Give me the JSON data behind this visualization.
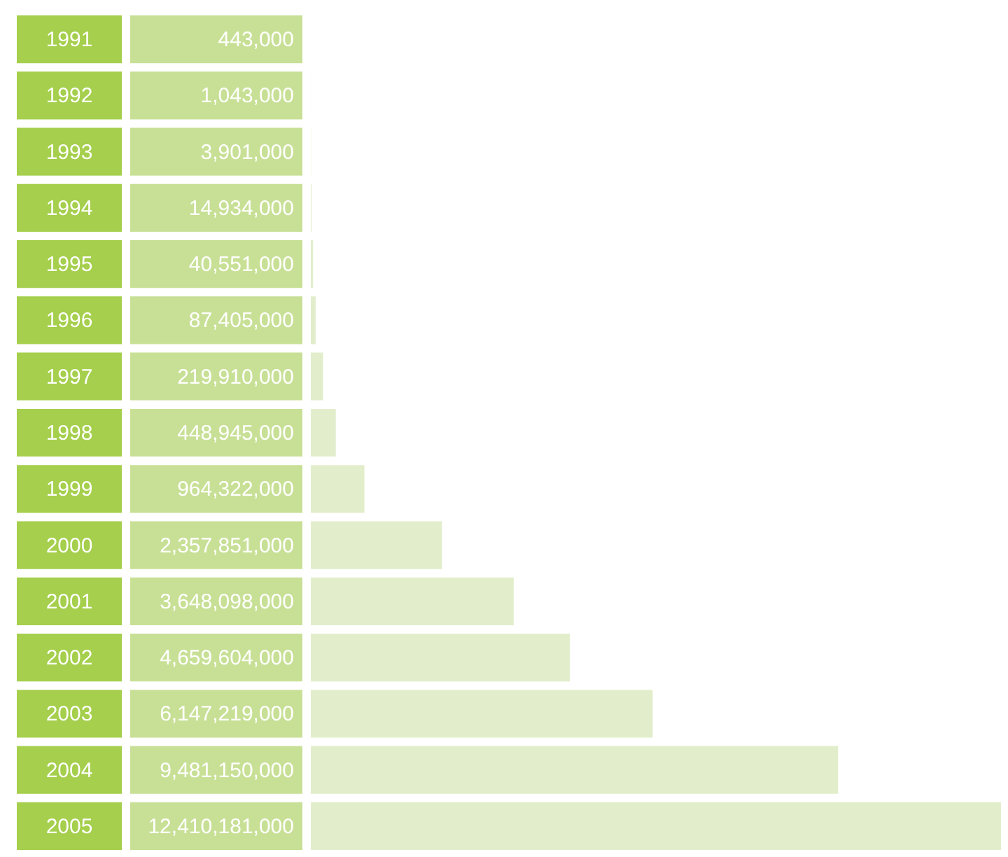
{
  "chart_data": {
    "type": "bar",
    "orientation": "horizontal",
    "categories": [
      "1991",
      "1992",
      "1993",
      "1994",
      "1995",
      "1996",
      "1997",
      "1998",
      "1999",
      "2000",
      "2001",
      "2002",
      "2003",
      "2004",
      "2005"
    ],
    "series": [
      {
        "color": "#e2eecb",
        "values": [
          443000,
          1043000,
          3901000,
          14934000,
          40551000,
          87405000,
          219910000,
          448945000,
          964322000,
          2357851000,
          3648098000,
          4659604000,
          6147219000,
          9481150000,
          12410181000
        ],
        "value_labels": [
          "443,000",
          "1,043,000",
          "3,901,000",
          "14,934,000",
          "40,551,000",
          "87,405,000",
          "219,910,000",
          "448,945,000",
          "964,322,000",
          "2,357,851,000",
          "3,648,098,000",
          "4,659,604,000",
          "6,147,219,000",
          "9,481,150,000",
          "12,410,181,000"
        ]
      }
    ],
    "tick_labels": "y"
  }
}
